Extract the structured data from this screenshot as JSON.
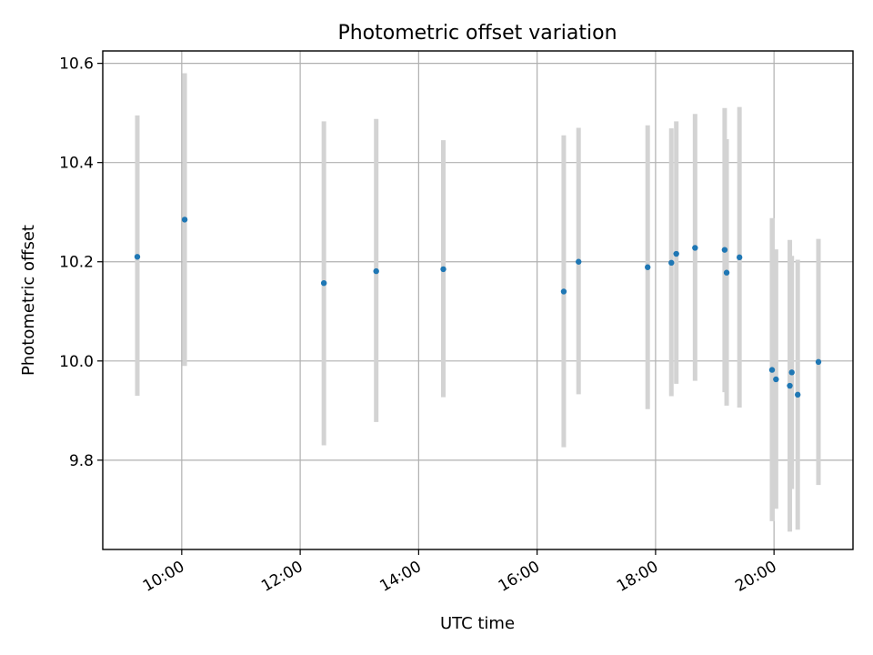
{
  "chart_data": {
    "type": "scatter",
    "title": "Photometric offset variation",
    "xlabel": "UTC time",
    "ylabel": "Photometric offset",
    "x_tick_labels": [
      "10:00",
      "12:00",
      "14:00",
      "16:00",
      "18:00",
      "20:00"
    ],
    "x_tick_values": [
      "10:00",
      "12:00",
      "14:00",
      "16:00",
      "18:00",
      "20:00"
    ],
    "y_tick_values": [
      9.8,
      10.0,
      10.2,
      10.4,
      10.6
    ],
    "y_tick_labels": [
      "9.8",
      "10.0",
      "10.2",
      "10.4",
      "10.6"
    ],
    "xlim": [
      "08:40",
      "21:20"
    ],
    "ylim": [
      9.62,
      10.625
    ],
    "grid": true,
    "point_color": "#1f77b4",
    "errorbar_color": "#d3d3d3",
    "points": [
      {
        "x": "09:15",
        "y": 10.21,
        "low": 9.93,
        "high": 10.495
      },
      {
        "x": "10:03",
        "y": 10.285,
        "low": 9.99,
        "high": 10.58
      },
      {
        "x": "12:24",
        "y": 10.157,
        "low": 9.83,
        "high": 10.483
      },
      {
        "x": "13:17",
        "y": 10.181,
        "low": 9.877,
        "high": 10.488
      },
      {
        "x": "14:25",
        "y": 10.185,
        "low": 9.927,
        "high": 10.445
      },
      {
        "x": "16:27",
        "y": 10.14,
        "low": 9.826,
        "high": 10.455
      },
      {
        "x": "16:42",
        "y": 10.2,
        "low": 9.933,
        "high": 10.47
      },
      {
        "x": "17:52",
        "y": 10.189,
        "low": 9.903,
        "high": 10.475
      },
      {
        "x": "18:16",
        "y": 10.198,
        "low": 9.929,
        "high": 10.469
      },
      {
        "x": "18:21",
        "y": 10.216,
        "low": 9.954,
        "high": 10.483
      },
      {
        "x": "18:40",
        "y": 10.228,
        "low": 9.96,
        "high": 10.498
      },
      {
        "x": "19:10",
        "y": 10.224,
        "low": 9.937,
        "high": 10.51
      },
      {
        "x": "19:12",
        "y": 10.178,
        "low": 9.91,
        "high": 10.447
      },
      {
        "x": "19:25",
        "y": 10.209,
        "low": 9.906,
        "high": 10.512
      },
      {
        "x": "19:58",
        "y": 9.982,
        "low": 9.677,
        "high": 10.288
      },
      {
        "x": "20:02",
        "y": 9.963,
        "low": 9.702,
        "high": 10.225
      },
      {
        "x": "20:16",
        "y": 9.95,
        "low": 9.656,
        "high": 10.244
      },
      {
        "x": "20:18",
        "y": 9.977,
        "low": 9.742,
        "high": 10.212
      },
      {
        "x": "20:24",
        "y": 9.932,
        "low": 9.66,
        "high": 10.204
      },
      {
        "x": "20:45",
        "y": 9.998,
        "low": 9.75,
        "high": 10.246
      }
    ]
  }
}
